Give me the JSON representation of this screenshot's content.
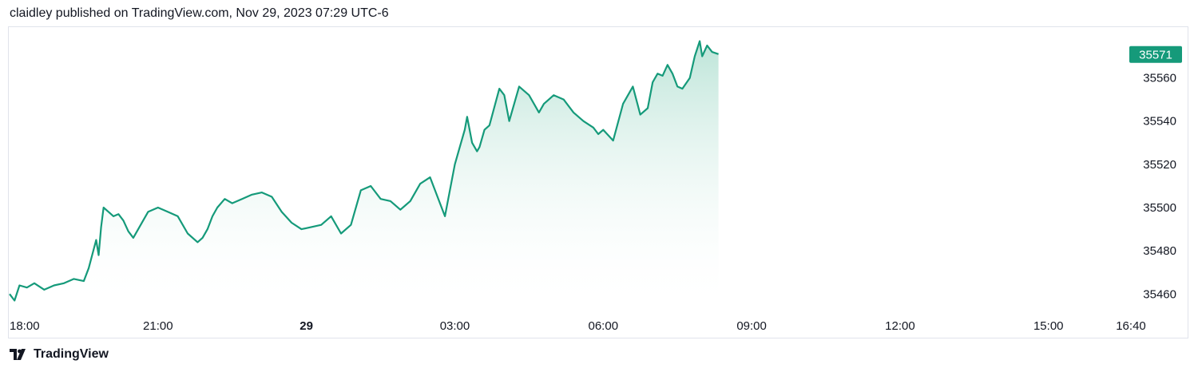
{
  "header": {
    "text": "claidley published on TradingView.com, Nov 29, 2023 07:29 UTC-6"
  },
  "footer": {
    "brand": "TradingView",
    "logo_icon": "tradingview-logo-icon"
  },
  "colors": {
    "line": "#159a7a",
    "badge": "#159a7a",
    "fill_top": "#b9e3d6",
    "frame": "#e0e3eb"
  },
  "chart_data": {
    "type": "area",
    "title": "",
    "xlabel": "",
    "ylabel": "",
    "ylim": [
      35452,
      35582
    ],
    "last_price": 35571,
    "last_price_label": "35571",
    "y_ticks": [
      35460,
      35480,
      35500,
      35520,
      35540,
      35560
    ],
    "y_tick_labels": [
      "35460",
      "35480",
      "35500",
      "35520",
      "35540",
      "35560"
    ],
    "x_ticks": [
      {
        "label": "18:00",
        "t": 0,
        "bold": false
      },
      {
        "label": "21:00",
        "t": 3,
        "bold": false
      },
      {
        "label": "29",
        "t": 6,
        "bold": true
      },
      {
        "label": "03:00",
        "t": 9,
        "bold": false
      },
      {
        "label": "06:00",
        "t": 12,
        "bold": false
      },
      {
        "label": "09:00",
        "t": 15,
        "bold": false
      },
      {
        "label": "12:00",
        "t": 18,
        "bold": false
      },
      {
        "label": "15:00",
        "t": 21,
        "bold": false
      },
      {
        "label": "16:40",
        "t": 22.667,
        "bold": false
      }
    ],
    "x_unit_note": "hours since Nov 28 18:00",
    "x": [
      0,
      0.1,
      0.2,
      0.35,
      0.5,
      0.7,
      0.9,
      1.1,
      1.3,
      1.5,
      1.6,
      1.75,
      1.8,
      1.85,
      1.9,
      2.0,
      2.1,
      2.2,
      2.3,
      2.4,
      2.5,
      2.7,
      2.8,
      3.0,
      3.2,
      3.4,
      3.6,
      3.8,
      3.9,
      4.0,
      4.1,
      4.2,
      4.35,
      4.5,
      4.7,
      4.9,
      5.1,
      5.3,
      5.5,
      5.7,
      5.9,
      6.1,
      6.3,
      6.5,
      6.7,
      6.9,
      7.1,
      7.3,
      7.5,
      7.7,
      7.9,
      8.1,
      8.3,
      8.5,
      8.6,
      8.8,
      9.0,
      9.1,
      9.2,
      9.25,
      9.35,
      9.45,
      9.5,
      9.6,
      9.7,
      9.9,
      10.0,
      10.1,
      10.3,
      10.5,
      10.7,
      10.8,
      11.0,
      11.2,
      11.4,
      11.6,
      11.8,
      11.9,
      12.0,
      12.2,
      12.4,
      12.6,
      12.75,
      12.9,
      13.0,
      13.1,
      13.2,
      13.3,
      13.4,
      13.5,
      13.6,
      13.75,
      13.85,
      13.95,
      14.0,
      14.1,
      14.2,
      14.33
    ],
    "values": [
      35460,
      35457,
      35464,
      35463,
      35465,
      35462,
      35464,
      35465,
      35467,
      35466,
      35472,
      35485,
      35478,
      35491,
      35500,
      35498,
      35496,
      35497,
      35494,
      35489,
      35486,
      35494,
      35498,
      35500,
      35498,
      35496,
      35488,
      35484,
      35486,
      35490,
      35496,
      35500,
      35504,
      35502,
      35504,
      35506,
      35507,
      35505,
      35498,
      35493,
      35490,
      35491,
      35492,
      35496,
      35488,
      35492,
      35508,
      35510,
      35504,
      35503,
      35499,
      35503,
      35511,
      35514,
      35508,
      35496,
      35520,
      35528,
      35536,
      35542,
      35530,
      35526,
      35528,
      35536,
      35538,
      35555,
      35552,
      35540,
      35556,
      35552,
      35544,
      35548,
      35552,
      35550,
      35544,
      35540,
      35537,
      35534,
      35536,
      35531,
      35548,
      35556,
      35543,
      35546,
      35558,
      35562,
      35561,
      35566,
      35562,
      35556,
      35555,
      35560,
      35570,
      35577,
      35570,
      35575,
      35572,
      35571
    ]
  }
}
